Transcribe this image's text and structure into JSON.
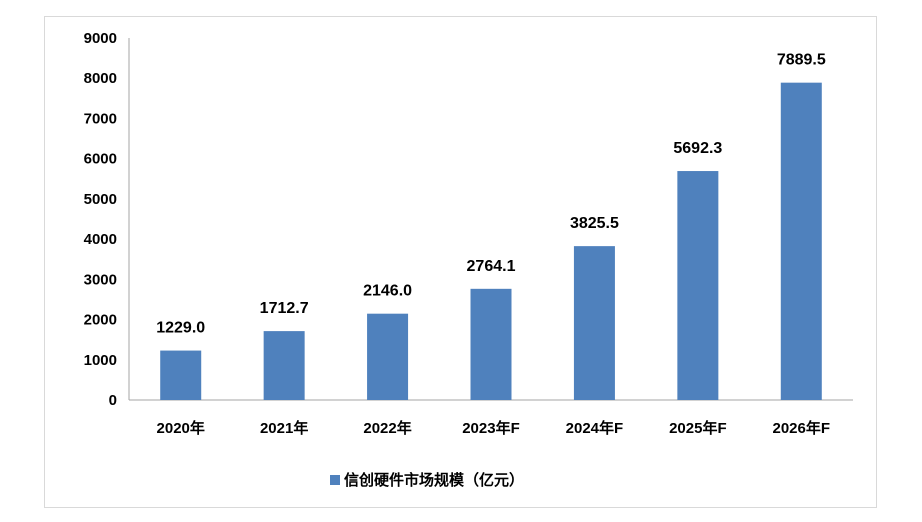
{
  "chart_data": {
    "type": "bar",
    "categories": [
      "2020年",
      "2021年",
      "2022年",
      "2023年F",
      "2024年F",
      "2025年F",
      "2026年F"
    ],
    "series": [
      {
        "name": "信创硬件市场规模（亿元）",
        "values": [
          1229.0,
          1712.7,
          2146.0,
          2764.1,
          3825.5,
          5692.3,
          7889.5
        ],
        "color": "#4f81bd"
      }
    ],
    "data_labels": [
      "1229.0",
      "1712.7",
      "2146.0",
      "2764.1",
      "3825.5",
      "5692.3",
      "7889.5"
    ],
    "y_ticks": [
      "0",
      "1000",
      "2000",
      "3000",
      "4000",
      "5000",
      "6000",
      "7000",
      "8000",
      "9000"
    ],
    "ylim": [
      0,
      9000
    ],
    "grid": false,
    "legend_position": "bottom"
  }
}
